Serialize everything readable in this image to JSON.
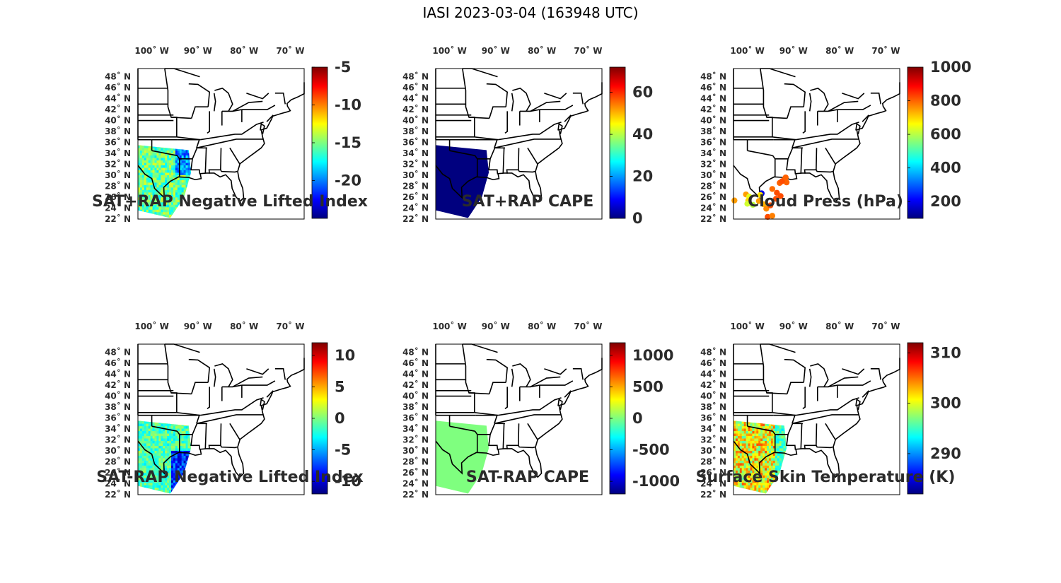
{
  "figure": {
    "title": "IASI 2023-03-04 (163948 UTC)"
  },
  "axes": {
    "lon_ticks": [
      "100˚ W",
      "90˚ W",
      "80˚ W",
      "70˚ W"
    ],
    "lon_values": [
      -100,
      -90,
      -80,
      -70
    ],
    "lat_ticks": [
      "48˚ N",
      "46˚ N",
      "44˚ N",
      "42˚ N",
      "40˚ N",
      "38˚ N",
      "36˚ N",
      "34˚ N",
      "32˚ N",
      "30˚ N",
      "28˚ N",
      "26˚ N",
      "24˚ N",
      "22˚ N"
    ],
    "lat_values": [
      48,
      46,
      44,
      42,
      40,
      38,
      36,
      34,
      32,
      30,
      28,
      26,
      24,
      22
    ],
    "lon_range": [
      -103,
      -67
    ],
    "lat_range": [
      22,
      49.5
    ]
  },
  "colors": {
    "jet": [
      "#00007f",
      "#0000ff",
      "#007fff",
      "#00ffff",
      "#7fff7f",
      "#ffff00",
      "#ff7f00",
      "#ff0000",
      "#7f0000"
    ]
  },
  "panels": [
    {
      "title": "SAT+RAP Negative Lifted Index",
      "colorbar_ticks": [
        "-5",
        "-10",
        "-15",
        "-20"
      ],
      "colorbar_tick_values": [
        -5,
        -10,
        -15,
        -20
      ],
      "colorbar_range": [
        -25,
        -5
      ],
      "field": "mixed-cool"
    },
    {
      "title": "SAT+RAP CAPE",
      "colorbar_ticks": [
        "60",
        "40",
        "20",
        "0"
      ],
      "colorbar_tick_values": [
        60,
        40,
        20,
        0
      ],
      "colorbar_range": [
        0,
        72
      ],
      "field": "uniform-dark-blue"
    },
    {
      "title": "Cloud Press (hPa)",
      "colorbar_ticks": [
        "1000",
        "800",
        "600",
        "400",
        "200"
      ],
      "colorbar_tick_values": [
        1000,
        800,
        600,
        400,
        200
      ],
      "colorbar_range": [
        100,
        1000
      ],
      "field": "scatter-orange"
    },
    {
      "title": "SAT-RAP Negative Lifted Index",
      "colorbar_ticks": [
        "10",
        "5",
        "0",
        "-5",
        "-10"
      ],
      "colorbar_tick_values": [
        10,
        5,
        0,
        -5,
        -10
      ],
      "colorbar_range": [
        -12,
        12
      ],
      "field": "mixed-cyan"
    },
    {
      "title": "SAT-RAP CAPE",
      "colorbar_ticks": [
        "1000",
        "500",
        "0",
        "-500",
        "-1000"
      ],
      "colorbar_tick_values": [
        1000,
        500,
        0,
        -500,
        -1000
      ],
      "colorbar_range": [
        -1200,
        1200
      ],
      "field": "uniform-green"
    },
    {
      "title": "Surface Skin Temperature (K)",
      "colorbar_ticks": [
        "310",
        "300",
        "290"
      ],
      "colorbar_tick_values": [
        310,
        300,
        290
      ],
      "colorbar_range": [
        282,
        312
      ],
      "field": "mixed-warm"
    }
  ]
}
